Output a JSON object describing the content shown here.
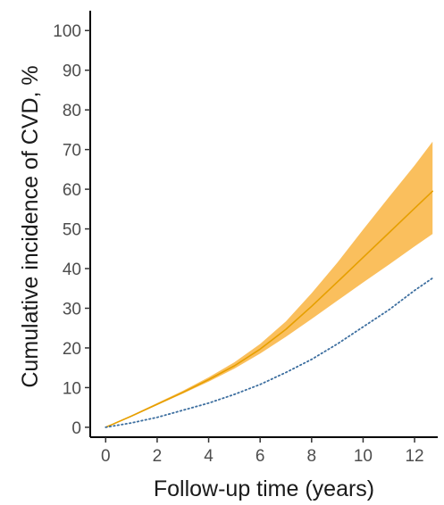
{
  "chart_data": {
    "type": "line",
    "title": "",
    "xlabel": "Follow-up time (years)",
    "ylabel": "Cumulative incidence of CVD, %",
    "xlim": [
      -0.6,
      12.9
    ],
    "ylim": [
      -2.5,
      105
    ],
    "x_ticks": [
      0,
      2,
      4,
      6,
      8,
      10,
      12
    ],
    "y_ticks": [
      0,
      10,
      20,
      30,
      40,
      50,
      60,
      70,
      80,
      90,
      100
    ],
    "grid": false,
    "legend": "none",
    "x": [
      0,
      1,
      2,
      3,
      4,
      5,
      6,
      7,
      8,
      9,
      10,
      11,
      12,
      12.7
    ],
    "series": [
      {
        "color": "#E69F00",
        "line_style": "solid",
        "values": [
          0,
          2.8,
          5.8,
          8.8,
          12.0,
          15.5,
          19.7,
          24.7,
          30.5,
          36.6,
          42.8,
          49.0,
          55.2,
          59.5
        ],
        "ci_lower": [
          0,
          2.7,
          5.6,
          8.5,
          11.5,
          14.8,
          18.6,
          22.8,
          27.3,
          31.9,
          36.5,
          41.0,
          45.6,
          48.7
        ],
        "ci_upper": [
          0,
          3.0,
          6.1,
          9.2,
          12.6,
          16.4,
          21.0,
          26.7,
          33.8,
          41.5,
          49.8,
          58.0,
          66.0,
          72.0
        ],
        "band_color": "#F9B84B"
      },
      {
        "color": "#3C6E9F",
        "line_style": "dotted",
        "values": [
          0,
          1.1,
          2.5,
          4.3,
          6.1,
          8.3,
          10.8,
          13.8,
          17.1,
          21.0,
          25.3,
          29.6,
          34.5,
          37.6
        ]
      }
    ]
  }
}
